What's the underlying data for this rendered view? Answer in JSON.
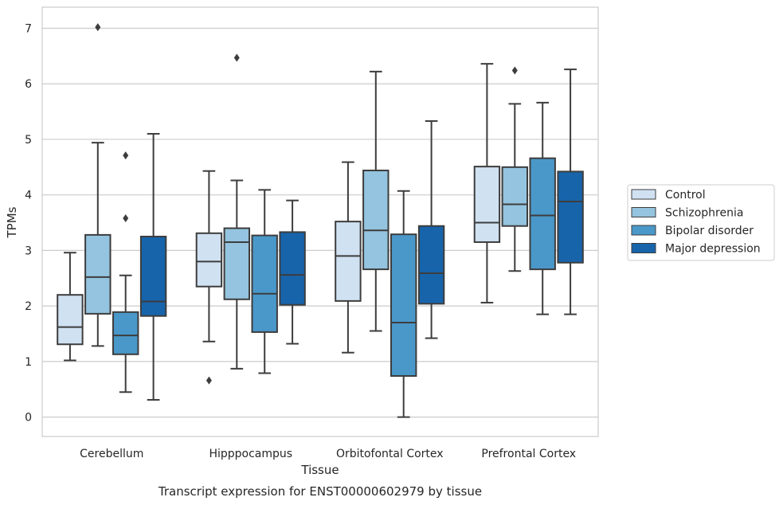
{
  "caption": "Transcript expression for ENST00000602979 by tissue",
  "chart_data": {
    "type": "box",
    "title": "",
    "xlabel": "Tissue",
    "ylabel": "TPMs",
    "ylim": [
      -0.35,
      7.38
    ],
    "yticks": [
      0,
      1,
      2,
      3,
      4,
      5,
      6,
      7
    ],
    "grid": "horizontal",
    "legend_position": "right",
    "categories": [
      "Cerebellum",
      "Hipppocampus",
      "Orbitofontal Cortex",
      "Prefrontal Cortex"
    ],
    "series": [
      {
        "name": "Control",
        "color": "#d0e1f2",
        "boxes": [
          {
            "whisker_low": 1.02,
            "q1": 1.31,
            "median": 1.62,
            "q3": 2.2,
            "whisker_high": 2.96,
            "outliers": []
          },
          {
            "whisker_low": 1.36,
            "q1": 2.35,
            "median": 2.8,
            "q3": 3.31,
            "whisker_high": 4.43,
            "outliers": [
              0.66
            ]
          },
          {
            "whisker_low": 1.16,
            "q1": 2.09,
            "median": 2.9,
            "q3": 3.52,
            "whisker_high": 4.59,
            "outliers": []
          },
          {
            "whisker_low": 2.06,
            "q1": 3.15,
            "median": 3.5,
            "q3": 4.51,
            "whisker_high": 6.36,
            "outliers": []
          }
        ]
      },
      {
        "name": "Schizophrenia",
        "color": "#94c4df",
        "boxes": [
          {
            "whisker_low": 1.28,
            "q1": 1.86,
            "median": 2.52,
            "q3": 3.28,
            "whisker_high": 4.94,
            "outliers": [
              7.02
            ]
          },
          {
            "whisker_low": 0.87,
            "q1": 2.12,
            "median": 3.15,
            "q3": 3.4,
            "whisker_high": 4.26,
            "outliers": [
              6.47
            ]
          },
          {
            "whisker_low": 1.55,
            "q1": 2.66,
            "median": 3.36,
            "q3": 4.44,
            "whisker_high": 6.22,
            "outliers": []
          },
          {
            "whisker_low": 2.63,
            "q1": 3.44,
            "median": 3.83,
            "q3": 4.5,
            "whisker_high": 5.64,
            "outliers": [
              6.24
            ]
          }
        ]
      },
      {
        "name": "Bipolar disorder",
        "color": "#4a98c9",
        "boxes": [
          {
            "whisker_low": 0.45,
            "q1": 1.13,
            "median": 1.47,
            "q3": 1.89,
            "whisker_high": 2.55,
            "outliers": [
              3.58,
              4.71
            ]
          },
          {
            "whisker_low": 0.79,
            "q1": 1.53,
            "median": 2.22,
            "q3": 3.27,
            "whisker_high": 4.09,
            "outliers": []
          },
          {
            "whisker_low": 0.0,
            "q1": 0.74,
            "median": 1.7,
            "q3": 3.29,
            "whisker_high": 4.07,
            "outliers": []
          },
          {
            "whisker_low": 1.85,
            "q1": 2.66,
            "median": 3.63,
            "q3": 4.66,
            "whisker_high": 5.66,
            "outliers": []
          }
        ]
      },
      {
        "name": "Major depression",
        "color": "#1764ab",
        "boxes": [
          {
            "whisker_low": 0.31,
            "q1": 1.82,
            "median": 2.08,
            "q3": 3.25,
            "whisker_high": 5.1,
            "outliers": []
          },
          {
            "whisker_low": 1.32,
            "q1": 2.02,
            "median": 2.56,
            "q3": 3.33,
            "whisker_high": 3.9,
            "outliers": []
          },
          {
            "whisker_low": 1.42,
            "q1": 2.04,
            "median": 2.59,
            "q3": 3.44,
            "whisker_high": 5.33,
            "outliers": []
          },
          {
            "whisker_low": 1.85,
            "q1": 2.78,
            "median": 3.88,
            "q3": 4.42,
            "whisker_high": 6.26,
            "outliers": []
          }
        ]
      }
    ]
  }
}
